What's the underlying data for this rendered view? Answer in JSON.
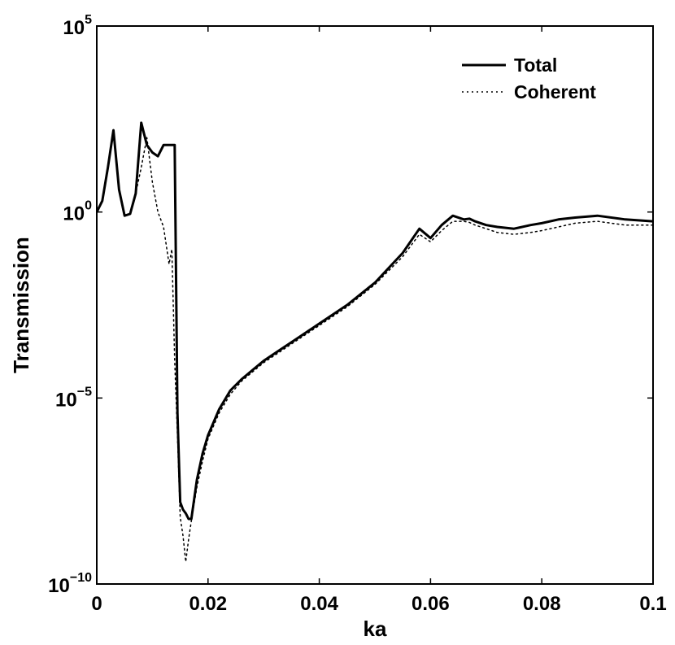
{
  "chart_data": {
    "type": "line",
    "xlabel": "ka",
    "ylabel": "Transmission",
    "yscale": "log",
    "xlim": [
      0,
      0.1
    ],
    "ylim_exponent": [
      -10,
      5
    ],
    "grid": false,
    "legend_position": "top-right",
    "x_ticks": [
      {
        "value": 0,
        "label": "0"
      },
      {
        "value": 0.02,
        "label": "0.02"
      },
      {
        "value": 0.04,
        "label": "0.04"
      },
      {
        "value": 0.06,
        "label": "0.06"
      },
      {
        "value": 0.08,
        "label": "0.08"
      },
      {
        "value": 0.1,
        "label": "0.1"
      }
    ],
    "y_ticks": [
      {
        "exponent": 5,
        "base": "10",
        "sup": "5"
      },
      {
        "exponent": 0,
        "base": "10",
        "sup": "0"
      },
      {
        "exponent": -5,
        "base": "10",
        "sup": "−5"
      },
      {
        "exponent": -10,
        "base": "10",
        "sup": "−10"
      }
    ],
    "series": [
      {
        "name": "Total",
        "style": "solid",
        "color": "#000000",
        "x": [
          0.0,
          0.001,
          0.002,
          0.003,
          0.004,
          0.005,
          0.006,
          0.007,
          0.008,
          0.009,
          0.01,
          0.011,
          0.012,
          0.013,
          0.014,
          0.0145,
          0.015,
          0.0155,
          0.016,
          0.0165,
          0.017,
          0.018,
          0.019,
          0.02,
          0.022,
          0.024,
          0.026,
          0.028,
          0.03,
          0.033,
          0.036,
          0.04,
          0.045,
          0.05,
          0.055,
          0.058,
          0.06,
          0.062,
          0.064,
          0.066,
          0.067,
          0.068,
          0.07,
          0.072,
          0.075,
          0.078,
          0.08,
          0.083,
          0.086,
          0.09,
          0.095,
          0.1
        ],
        "exponent": [
          0.0,
          0.3,
          1.2,
          2.2,
          0.6,
          -0.1,
          -0.05,
          0.5,
          2.4,
          1.8,
          1.6,
          1.5,
          1.8,
          1.8,
          1.8,
          -5.4,
          -7.8,
          -8.0,
          -8.1,
          -8.25,
          -8.25,
          -7.2,
          -6.5,
          -6.0,
          -5.3,
          -4.8,
          -4.5,
          -4.25,
          -4.0,
          -3.7,
          -3.4,
          -3.0,
          -2.5,
          -1.9,
          -1.1,
          -0.45,
          -0.7,
          -0.35,
          -0.1,
          -0.2,
          -0.18,
          -0.25,
          -0.35,
          -0.4,
          -0.45,
          -0.35,
          -0.3,
          -0.2,
          -0.15,
          -0.1,
          -0.2,
          -0.25
        ]
      },
      {
        "name": "Coherent",
        "style": "dotted",
        "color": "#000000",
        "x": [
          0.0,
          0.001,
          0.002,
          0.003,
          0.004,
          0.005,
          0.006,
          0.007,
          0.008,
          0.009,
          0.01,
          0.011,
          0.012,
          0.013,
          0.0135,
          0.014,
          0.0145,
          0.015,
          0.0155,
          0.016,
          0.0165,
          0.017,
          0.018,
          0.019,
          0.02,
          0.022,
          0.024,
          0.026,
          0.028,
          0.03,
          0.033,
          0.036,
          0.04,
          0.045,
          0.05,
          0.055,
          0.058,
          0.06,
          0.062,
          0.064,
          0.066,
          0.067,
          0.068,
          0.07,
          0.072,
          0.075,
          0.078,
          0.08,
          0.083,
          0.086,
          0.09,
          0.095,
          0.1
        ],
        "exponent": [
          0.0,
          0.3,
          1.2,
          2.2,
          0.6,
          -0.1,
          -0.05,
          0.5,
          1.2,
          2.0,
          0.8,
          0.0,
          -0.4,
          -1.4,
          -1.0,
          -4.0,
          -6.0,
          -8.2,
          -8.7,
          -9.4,
          -8.8,
          -8.3,
          -7.4,
          -6.7,
          -6.1,
          -5.4,
          -4.9,
          -4.55,
          -4.3,
          -4.05,
          -3.75,
          -3.45,
          -3.05,
          -2.55,
          -1.95,
          -1.2,
          -0.6,
          -0.8,
          -0.5,
          -0.25,
          -0.25,
          -0.28,
          -0.35,
          -0.45,
          -0.55,
          -0.6,
          -0.55,
          -0.5,
          -0.4,
          -0.3,
          -0.25,
          -0.35,
          -0.35
        ]
      }
    ]
  }
}
